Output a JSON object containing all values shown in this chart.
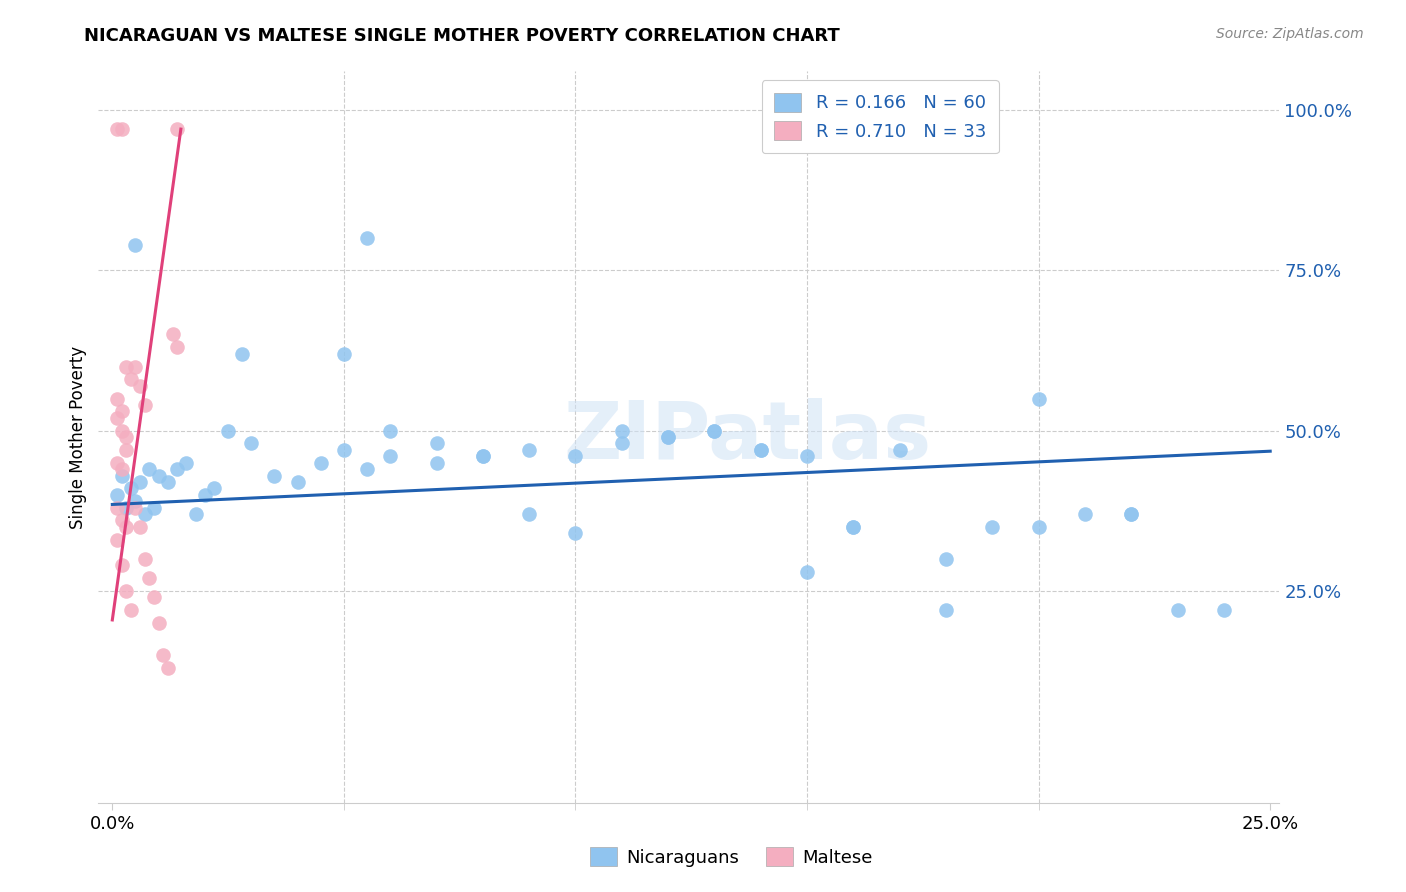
{
  "title": "NICARAGUAN VS MALTESE SINGLE MOTHER POVERTY CORRELATION CHART",
  "source": "Source: ZipAtlas.com",
  "ylabel": "Single Mother Poverty",
  "blue_R": 0.166,
  "blue_N": 60,
  "pink_R": 0.71,
  "pink_N": 33,
  "blue_color": "#90c4ef",
  "pink_color": "#f4aec0",
  "blue_line_color": "#2060b0",
  "pink_line_color": "#e0407a",
  "watermark_text": "ZIPatlas",
  "legend_label_blue": "Nicaraguans",
  "legend_label_pink": "Maltese",
  "xlim": [
    0.0,
    0.25
  ],
  "ylim": [
    -0.08,
    1.06
  ],
  "blue_line_y": [
    0.385,
    0.468
  ],
  "pink_line_x": [
    0.0,
    0.0148
  ],
  "pink_line_y": [
    0.205,
    0.97
  ],
  "yticks": [
    0.0,
    0.25,
    0.5,
    0.75,
    1.0
  ],
  "ytick_labels": [
    "",
    "25.0%",
    "50.0%",
    "75.0%",
    "100.0%"
  ],
  "xticks_major": [
    0.0,
    0.25
  ],
  "xtick_labels": [
    "0.0%",
    "25.0%"
  ],
  "xticks_minor": [
    0.05,
    0.1,
    0.15,
    0.2
  ],
  "grid_color": "#cccccc",
  "blue_points_x": [
    0.001,
    0.002,
    0.003,
    0.004,
    0.005,
    0.006,
    0.007,
    0.008,
    0.009,
    0.01,
    0.012,
    0.014,
    0.016,
    0.018,
    0.02,
    0.022,
    0.025,
    0.03,
    0.035,
    0.04,
    0.045,
    0.05,
    0.055,
    0.06,
    0.07,
    0.08,
    0.09,
    0.1,
    0.11,
    0.12,
    0.13,
    0.14,
    0.05,
    0.06,
    0.07,
    0.08,
    0.09,
    0.1,
    0.11,
    0.12,
    0.13,
    0.14,
    0.15,
    0.16,
    0.17,
    0.18,
    0.19,
    0.2,
    0.21,
    0.22,
    0.23,
    0.24,
    0.15,
    0.16,
    0.2,
    0.22,
    0.055,
    0.028,
    0.005,
    0.18
  ],
  "blue_points_y": [
    0.4,
    0.43,
    0.38,
    0.41,
    0.39,
    0.42,
    0.37,
    0.44,
    0.38,
    0.43,
    0.42,
    0.44,
    0.45,
    0.37,
    0.4,
    0.41,
    0.5,
    0.48,
    0.43,
    0.42,
    0.45,
    0.47,
    0.44,
    0.46,
    0.45,
    0.46,
    0.47,
    0.46,
    0.5,
    0.49,
    0.5,
    0.47,
    0.62,
    0.5,
    0.48,
    0.46,
    0.37,
    0.34,
    0.48,
    0.49,
    0.5,
    0.47,
    0.46,
    0.35,
    0.47,
    0.3,
    0.35,
    0.55,
    0.37,
    0.37,
    0.22,
    0.22,
    0.28,
    0.35,
    0.35,
    0.37,
    0.8,
    0.62,
    0.79,
    0.22
  ],
  "pink_points_x": [
    0.001,
    0.002,
    0.014,
    0.001,
    0.002,
    0.003,
    0.001,
    0.002,
    0.003,
    0.001,
    0.002,
    0.003,
    0.001,
    0.002,
    0.003,
    0.004,
    0.005,
    0.006,
    0.007,
    0.008,
    0.009,
    0.01,
    0.011,
    0.012,
    0.013,
    0.014,
    0.001,
    0.002,
    0.003,
    0.004,
    0.005,
    0.006,
    0.007
  ],
  "pink_points_y": [
    0.97,
    0.97,
    0.97,
    0.38,
    0.36,
    0.35,
    0.45,
    0.44,
    0.47,
    0.52,
    0.5,
    0.49,
    0.55,
    0.53,
    0.6,
    0.58,
    0.38,
    0.35,
    0.3,
    0.27,
    0.24,
    0.2,
    0.15,
    0.13,
    0.65,
    0.63,
    0.33,
    0.29,
    0.25,
    0.22,
    0.6,
    0.57,
    0.54
  ]
}
